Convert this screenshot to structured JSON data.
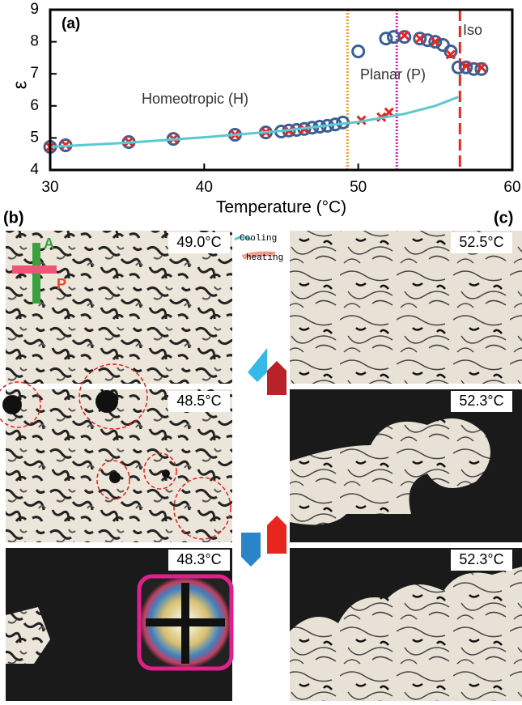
{
  "chart_data": {
    "type": "scatter",
    "panel_label": "(a)",
    "xlabel": "Temperature (°C)",
    "ylabel": "ε",
    "xlim": [
      30,
      60
    ],
    "ylim": [
      4,
      9
    ],
    "xticks": [
      30,
      40,
      50,
      60
    ],
    "yticks": [
      4,
      5,
      6,
      7,
      8,
      9
    ],
    "annotations": [
      "Homeotropic (H)",
      "Planar (P)",
      "Iso"
    ],
    "series": [
      {
        "marker": "circle",
        "color": "#3a5f95",
        "x": [
          30,
          31,
          35.1,
          38,
          42,
          44,
          45,
          45.5,
          46,
          46.5,
          47,
          47.5,
          48,
          48.5,
          49,
          50,
          51.8,
          52.3,
          53,
          54,
          54.5,
          55,
          55.5,
          56,
          56.5,
          57,
          57.5,
          58
        ],
        "values": [
          4.72,
          4.77,
          4.87,
          4.97,
          5.1,
          5.17,
          5.2,
          5.23,
          5.25,
          5.28,
          5.32,
          5.35,
          5.38,
          5.42,
          5.48,
          7.7,
          8.1,
          8.15,
          8.15,
          8.1,
          8.05,
          8,
          7.9,
          7.7,
          7.2,
          7.2,
          7.15,
          7.15
        ]
      },
      {
        "marker": "cross",
        "color": "#e8261f",
        "x": [
          30,
          31,
          35.1,
          38,
          42,
          44,
          45.5,
          46.5,
          50.2,
          51.5,
          52,
          53,
          54,
          55,
          56,
          57,
          58
        ],
        "values": [
          4.72,
          4.78,
          4.88,
          4.97,
          5.1,
          5.18,
          5.22,
          5.27,
          5.55,
          5.65,
          5.8,
          8.2,
          8.1,
          8,
          7.6,
          7.25,
          7.2
        ]
      },
      {
        "marker": "line",
        "color": "#5cc8d0",
        "x": [
          30,
          35,
          40,
          45,
          50,
          53,
          55,
          56.5
        ],
        "values": [
          4.72,
          4.85,
          5.02,
          5.22,
          5.5,
          5.75,
          6,
          6.28
        ]
      }
    ],
    "vlines": [
      {
        "value": 49.3,
        "color": "#f0a030",
        "style": "dotted"
      },
      {
        "value": 52.5,
        "color": "#e020c0",
        "style": "dotted"
      },
      {
        "value": 56.6,
        "color": "#e8261f",
        "style": "dashed"
      }
    ]
  },
  "panels": {
    "left_label": "(b)",
    "right_label": "(c)",
    "left": [
      "49.0°C",
      "48.5°C",
      "48.3°C"
    ],
    "right": [
      "52.5°C",
      "52.3°C",
      "52.3°C"
    ],
    "legend": [
      "Cooling",
      "heating"
    ],
    "polarizer": [
      "A",
      "P"
    ]
  }
}
